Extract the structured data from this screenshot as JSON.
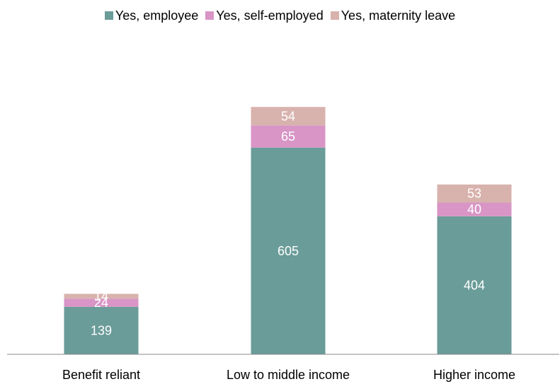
{
  "chart_data": {
    "type": "bar",
    "stacked": true,
    "categories": [
      "Benefit reliant",
      "Low to middle income",
      "Higher income"
    ],
    "series": [
      {
        "name": "Yes, employee",
        "color": "#6a9c99",
        "values": [
          139,
          605,
          404
        ]
      },
      {
        "name": "Yes, self-employed",
        "color": "#d895c6",
        "values": [
          24,
          65,
          40
        ]
      },
      {
        "name": "Yes, maternity leave",
        "color": "#d8b2ad",
        "values": [
          14,
          54,
          53
        ]
      }
    ],
    "legend": "top-center",
    "grid": false,
    "ylim": [
      0,
      800
    ]
  }
}
